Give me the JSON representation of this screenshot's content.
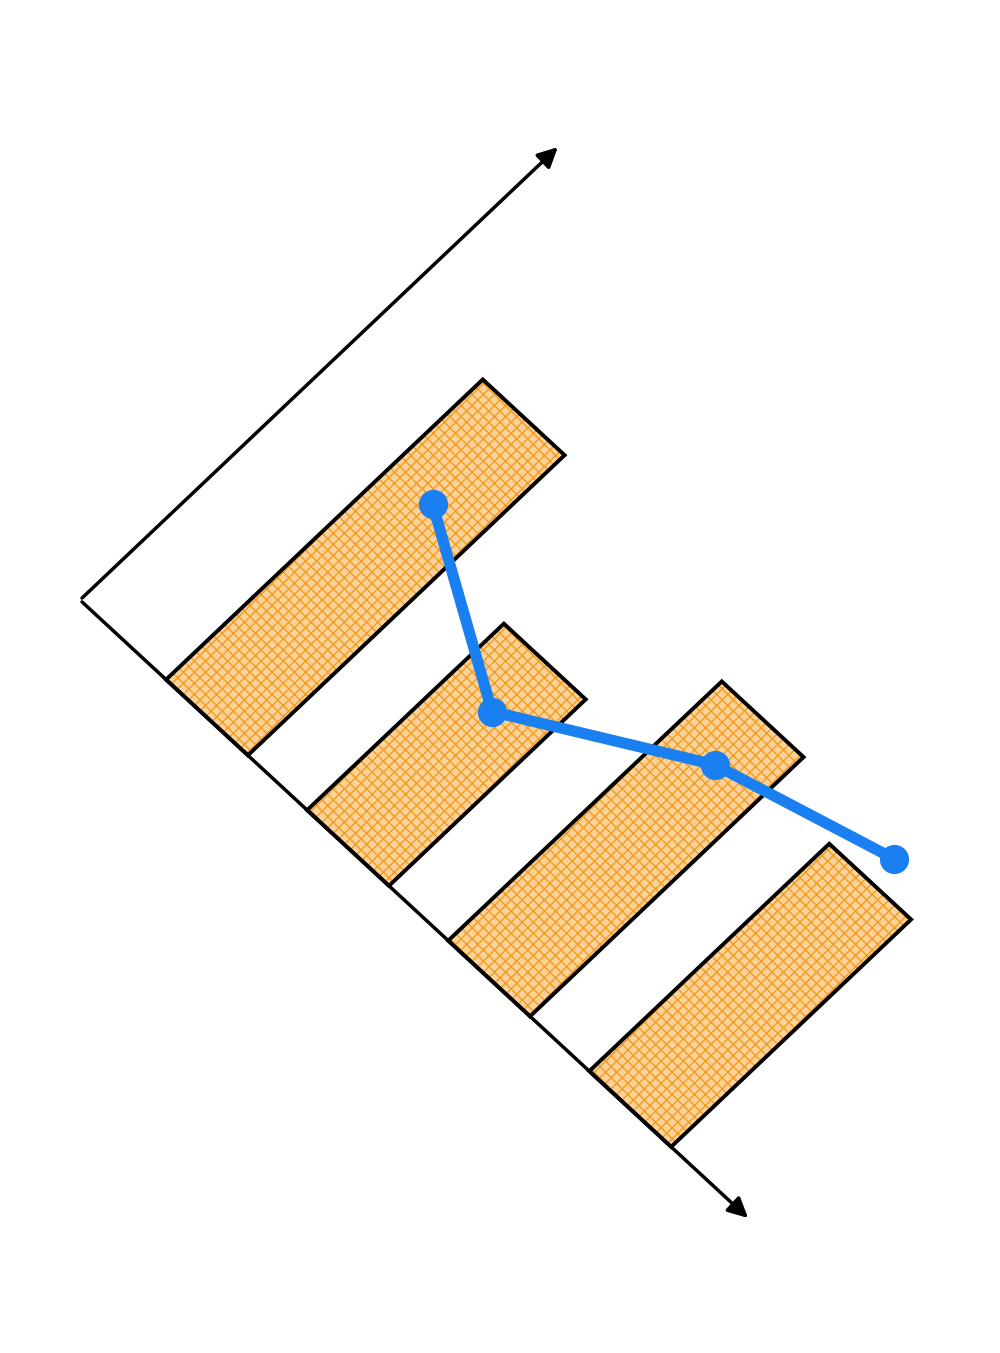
{
  "chart_data": {
    "type": "bar",
    "categories": [
      null,
      null,
      null,
      null
    ],
    "series": [
      {
        "type": "bar",
        "color": "#f39c1e",
        "values": [
          66,
          41,
          57,
          50
        ]
      },
      {
        "type": "line",
        "color": "#1a7ff0",
        "marker": "circle",
        "line_style": "solid",
        "values": [
          47,
          30,
          47,
          55
        ]
      }
    ],
    "xlim": [
      -0.9,
      3.85
    ],
    "ylim": [
      0,
      100
    ],
    "tick_labels": false,
    "grid": false
  }
}
